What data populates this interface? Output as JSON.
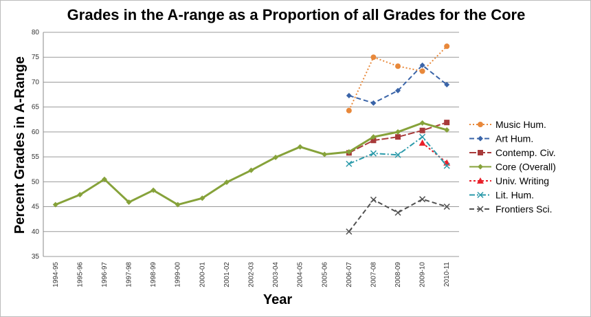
{
  "chart_data": {
    "type": "line",
    "title": "Grades in the A-range as a Proportion of all Grades for the Core",
    "xlabel": "Year",
    "ylabel": "Percent Grades in A-Range",
    "ylim": [
      35,
      80
    ],
    "yticks": [
      35,
      40,
      45,
      50,
      55,
      60,
      65,
      70,
      75,
      80
    ],
    "grid": true,
    "legend_position": "right",
    "categories": [
      "1994-95",
      "1995-96",
      "1996-97",
      "1997-98",
      "1998-99",
      "1999-00",
      "2000-01",
      "2001-02",
      "2002-03",
      "2003-04",
      "2004-05",
      "2005-06",
      "2006-07",
      "2007-08",
      "2008-09",
      "2009-10",
      "2010-11"
    ],
    "series": [
      {
        "name": "Music Hum.",
        "color": "#E8883A",
        "dash": "2,3",
        "marker": "circle",
        "values": [
          null,
          null,
          null,
          null,
          null,
          null,
          null,
          null,
          null,
          null,
          null,
          null,
          64.3,
          75.0,
          73.2,
          72.2,
          77.2
        ]
      },
      {
        "name": "Art Hum.",
        "color": "#3A64A8",
        "dash": "7,4",
        "marker": "diamond",
        "values": [
          null,
          null,
          null,
          null,
          null,
          null,
          null,
          null,
          null,
          null,
          null,
          null,
          67.3,
          65.8,
          68.3,
          73.4,
          69.5
        ]
      },
      {
        "name": "Contemp. Civ.",
        "color": "#A83A3A",
        "dash": "10,3",
        "marker": "square",
        "bold": true,
        "values": [
          null,
          null,
          null,
          null,
          null,
          null,
          null,
          null,
          null,
          null,
          null,
          null,
          55.8,
          58.3,
          59.0,
          60.3,
          61.9
        ]
      },
      {
        "name": "Core (Overall)",
        "color": "#86A23A",
        "dash": "",
        "marker": "diamond",
        "values": [
          45.4,
          47.4,
          50.5,
          45.9,
          48.3,
          45.4,
          46.7,
          49.9,
          52.3,
          54.9,
          57.0,
          55.5,
          56.0,
          59.0,
          60.0,
          61.8,
          60.4
        ]
      },
      {
        "name": "Univ. Writing",
        "color": "#E8202A",
        "dash": "3,3",
        "marker": "triangle",
        "values": [
          null,
          null,
          null,
          null,
          null,
          null,
          null,
          null,
          null,
          null,
          null,
          null,
          null,
          null,
          null,
          57.8,
          53.8
        ]
      },
      {
        "name": "Lit. Hum.",
        "color": "#2A9AAA",
        "dash": "8,3,2,3",
        "marker": "x",
        "values": [
          null,
          null,
          null,
          null,
          null,
          null,
          null,
          null,
          null,
          null,
          null,
          null,
          53.6,
          55.7,
          55.4,
          59.0,
          53.2
        ]
      },
      {
        "name": "Frontiers Sci.",
        "color": "#505050",
        "dash": "7,4",
        "marker": "x",
        "values": [
          null,
          null,
          null,
          null,
          null,
          null,
          null,
          null,
          null,
          null,
          null,
          null,
          40.0,
          46.4,
          43.8,
          46.5,
          45.0
        ]
      }
    ]
  }
}
